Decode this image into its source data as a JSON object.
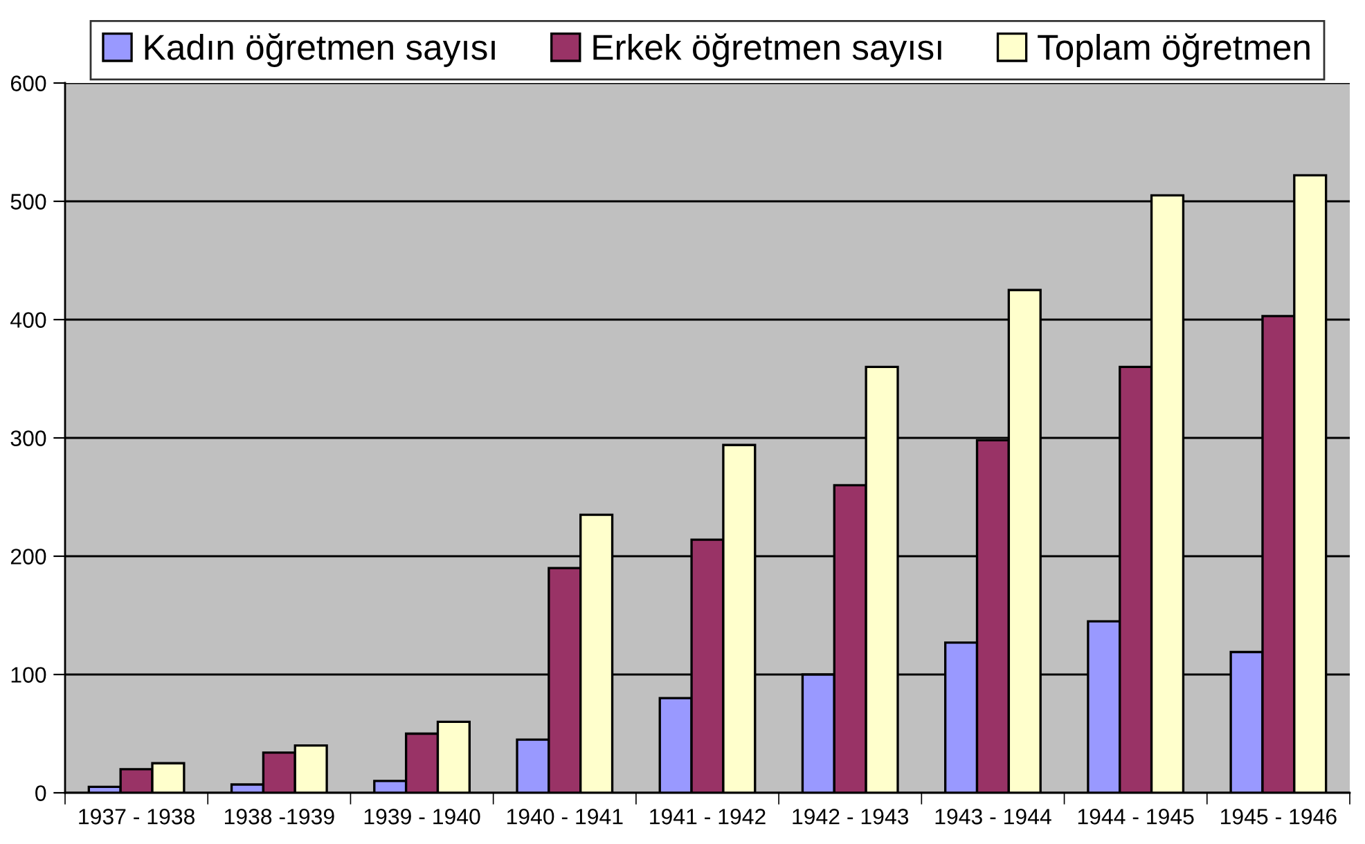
{
  "chart_data": {
    "type": "bar",
    "categories": [
      "1937 - 1938",
      "1938 -1939",
      "1939 - 1940",
      "1940 - 1941",
      "1941 - 1942",
      "1942 - 1943",
      "1943 - 1944",
      "1944 - 1945",
      "1945 - 1946"
    ],
    "series": [
      {
        "name": "Kadın öğretmen sayısı",
        "color": "#9999ff",
        "values": [
          5,
          7,
          10,
          45,
          80,
          100,
          127,
          145,
          119
        ]
      },
      {
        "name": "Erkek öğretmen sayısı",
        "color": "#993366",
        "values": [
          20,
          34,
          50,
          190,
          214,
          260,
          298,
          360,
          403
        ]
      },
      {
        "name": "Toplam öğretmen",
        "color": "#ffffcc",
        "values": [
          25,
          40,
          60,
          235,
          294,
          360,
          425,
          505,
          522
        ]
      }
    ],
    "ylim": [
      0,
      600
    ],
    "yticks": [
      0,
      100,
      200,
      300,
      400,
      500,
      600
    ],
    "grid": "y",
    "legend": "top"
  }
}
